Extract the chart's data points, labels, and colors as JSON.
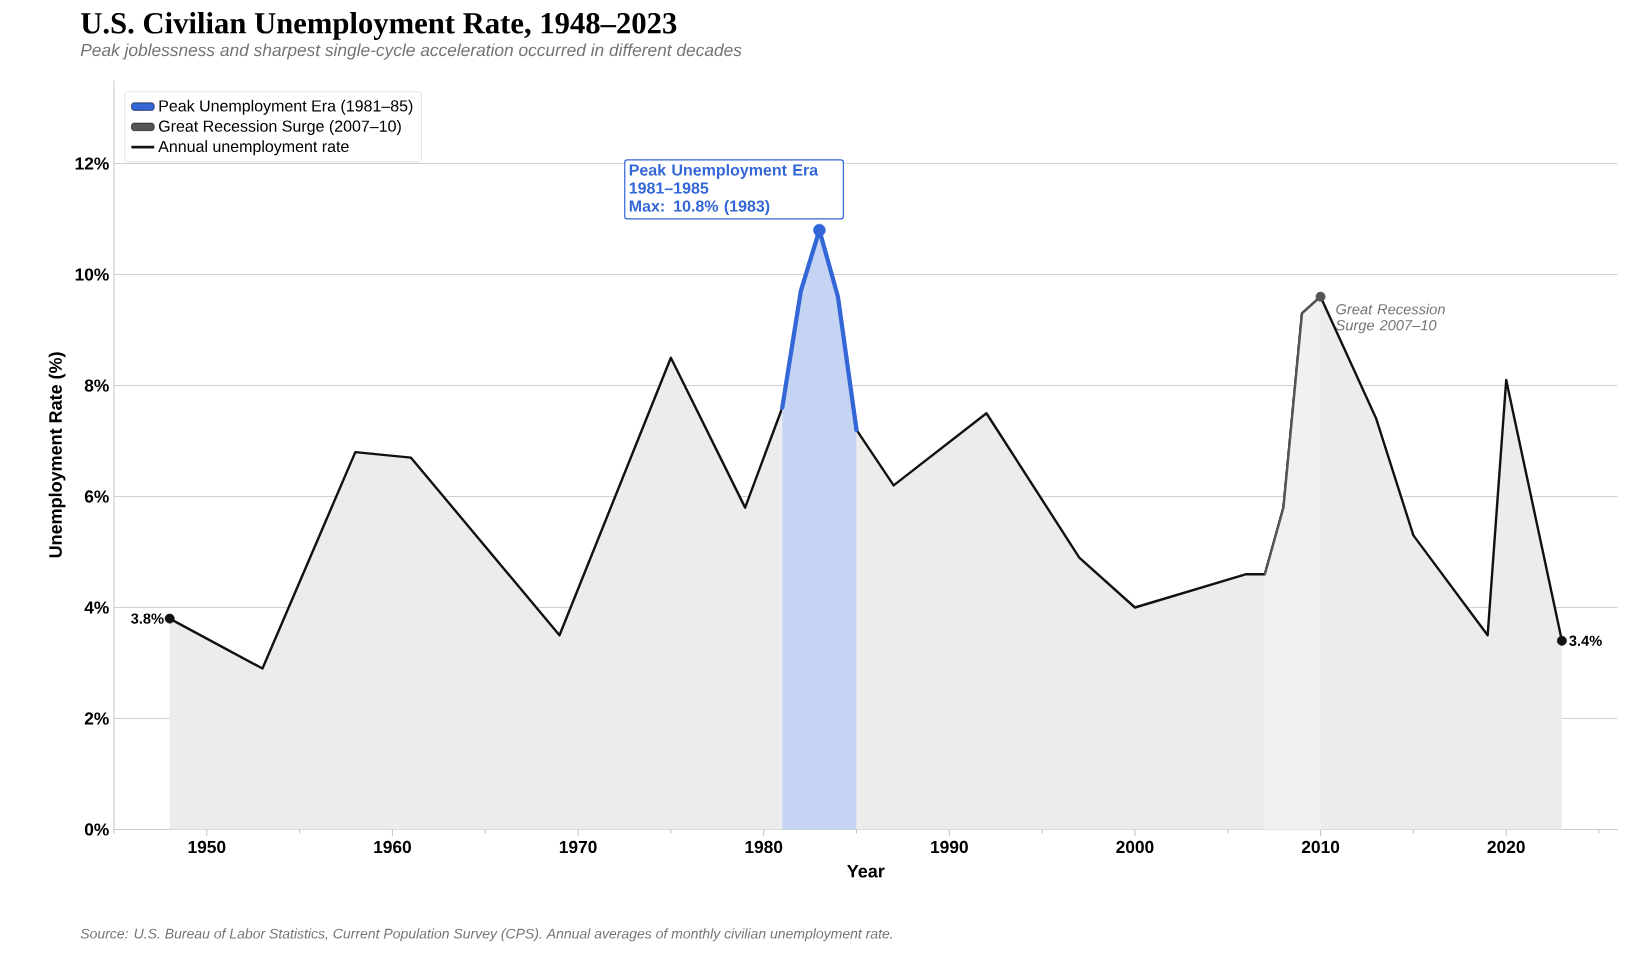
{
  "chart_data": {
    "type": "area",
    "title": "U.S. Civilian Unemployment Rate, 1948–2023",
    "subtitle": "Peak joblessness and sharpest single-cycle acceleration occurred in different decades",
    "xlabel": "Year",
    "ylabel": "Unemployment Rate (%)",
    "x": [
      1948,
      1953,
      1958,
      1961,
      1969,
      1975,
      1979,
      1981,
      1982,
      1983,
      1984,
      1985,
      1987,
      1992,
      1997,
      2000,
      2006,
      2007,
      2008,
      2009,
      2010,
      2013,
      2015,
      2019,
      2020,
      2023
    ],
    "series": [
      {
        "name": "Peak Unemployment Era (1981–85)",
        "color": "#3366d6",
        "x": [
          1981,
          1982,
          1983,
          1984,
          1985
        ],
        "values": [
          7.6,
          9.7,
          10.8,
          9.6,
          7.2
        ]
      },
      {
        "name": "Great Recession Surge (2007–10)",
        "color": "#555555",
        "x": [
          2007,
          2008,
          2009,
          2010
        ],
        "values": [
          4.6,
          5.8,
          9.3,
          9.6
        ]
      },
      {
        "name": "Annual unemployment rate",
        "color": "#111111",
        "values": [
          3.8,
          2.9,
          6.8,
          6.7,
          3.5,
          8.5,
          5.8,
          7.6,
          null,
          null,
          null,
          7.2,
          6.2,
          7.5,
          4.9,
          4.0,
          4.6,
          4.6,
          5.8,
          9.3,
          9.6,
          7.4,
          5.3,
          3.5,
          8.1,
          3.4
        ]
      }
    ],
    "xlim": [
      1945,
      2026
    ],
    "xticks": [
      {
        "value": 1945,
        "label": null
      },
      1950,
      {
        "value": 1955,
        "label": null
      },
      1960,
      {
        "value": 1965,
        "label": null
      },
      1970,
      {
        "value": 1975,
        "label": null
      },
      1980,
      {
        "value": 1985,
        "label": null
      },
      1990,
      {
        "value": 1995,
        "label": null
      },
      2000,
      {
        "value": 2005,
        "label": null
      },
      2010,
      {
        "value": 2015,
        "label": null
      },
      2020,
      {
        "value": 2025,
        "label": null
      }
    ],
    "ylim": [
      0,
      13.5
    ],
    "yticks": [
      {
        "value": 0,
        "label": "0%"
      },
      {
        "value": 2,
        "label": "2%"
      },
      {
        "value": 4,
        "label": "4%"
      },
      {
        "value": 6,
        "label": "6%"
      },
      {
        "value": 8,
        "label": "8%"
      },
      {
        "value": 10,
        "label": "10%"
      },
      {
        "value": 12,
        "label": "12%"
      }
    ],
    "grid": "y",
    "legend": "top left",
    "annotations": [
      {
        "text": "Peak Unemployment Era\n1981–1985\nMax: 10.8% (1983)",
        "x": 1983,
        "y": 10.8
      },
      {
        "text": "Great Recession\nSurge 2007–10",
        "x": 2010,
        "y": 9.6
      },
      {
        "text": "3.8%",
        "x": 1948,
        "y": 3.8
      },
      {
        "text": "3.4%",
        "x": 2023,
        "y": 3.4
      },
      "Source: U.S. Bureau of Labor Statistics, Current Population Survey (CPS). Annual averages of monthly civilian unemployment rate."
    ]
  }
}
